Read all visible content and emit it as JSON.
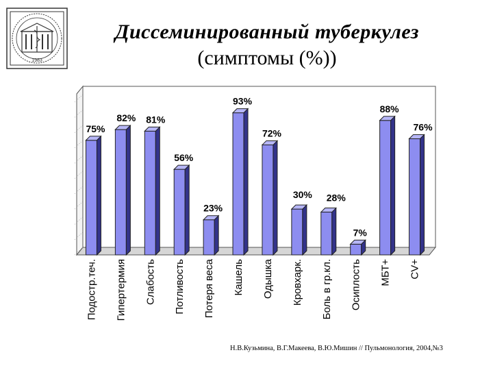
{
  "title_line1": "Диссеминированный туберкулез",
  "title_line2": "(симптомы (%))",
  "citation": "Н.В.Кузьмина, В.Г.Макеева, В.Ю.Мишин // Пульмонология, 2004,№3",
  "logo": {
    "icon": "institution-seal-icon",
    "caption": "1983"
  },
  "colors": {
    "bar_front": "#8d8df0",
    "bar_side": "#33338a",
    "bar_top": "#b6b6f7",
    "wall": "#ffffff",
    "floor": "#d6d6d6"
  },
  "chart_data": {
    "type": "bar",
    "categories": [
      "Подостр.теч.",
      "Гипертермия",
      "Слабость",
      "Потливость",
      "Потеря веса",
      "Кашель",
      "Одышка",
      "Кровхарк.",
      "Боль в гр.кл.",
      "Осиплость",
      "МБТ+",
      "CV+"
    ],
    "values": [
      75,
      82,
      81,
      56,
      23,
      93,
      72,
      30,
      28,
      7,
      88,
      76
    ],
    "data_labels": [
      "75%",
      "82%",
      "81%",
      "56%",
      "23%",
      "93%",
      "72%",
      "30%",
      "28%",
      "7%",
      "88%",
      "76%"
    ],
    "ylim": [
      0,
      100
    ],
    "xlabel": "",
    "ylabel": "",
    "grid": false,
    "legend": false
  }
}
